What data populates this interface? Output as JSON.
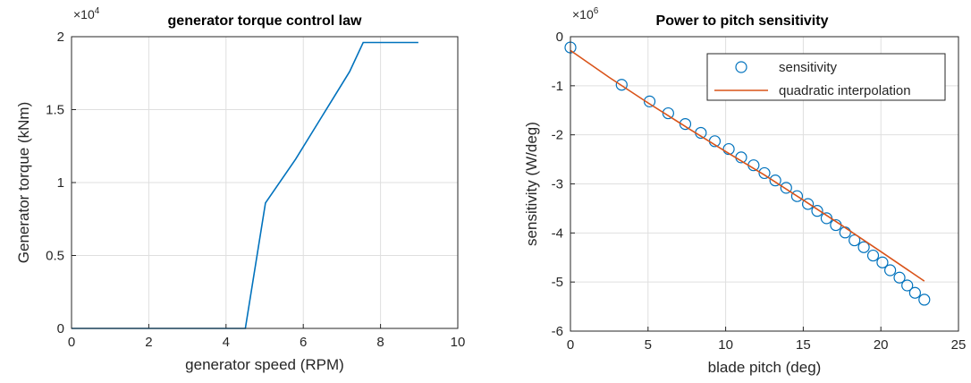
{
  "chart_data": [
    {
      "type": "line",
      "title": "generator torque control law",
      "xlabel": "generator speed (RPM)",
      "ylabel": "Generator torque (kNm)",
      "y_multiplier": "×10",
      "y_multiplier_exp": "4",
      "xlim": [
        0,
        10
      ],
      "ylim": [
        0,
        2
      ],
      "xticks": [
        "0",
        "2",
        "4",
        "6",
        "8",
        "10"
      ],
      "yticks": [
        "0",
        "0.5",
        "1",
        "1.5",
        "2"
      ],
      "grid": true,
      "series": [
        {
          "color": "#0072BD",
          "x": [
            0,
            4.5,
            5.02,
            5.8,
            6.5,
            7.2,
            7.55,
            7.6,
            8.98
          ],
          "y": [
            0,
            0,
            0.86,
            1.16,
            1.46,
            1.76,
            1.96,
            1.96,
            1.96
          ]
        }
      ]
    },
    {
      "type": "scatter",
      "title": "Power to pitch sensitivity",
      "xlabel": "blade pitch (deg)",
      "ylabel": "sensitivity (W/deg)",
      "y_multiplier": "×10",
      "y_multiplier_exp": "6",
      "xlim": [
        0,
        25
      ],
      "ylim": [
        -6,
        0
      ],
      "xticks": [
        "0",
        "5",
        "10",
        "15",
        "20",
        "25"
      ],
      "yticks": [
        "-6",
        "-5",
        "-4",
        "-3",
        "-2",
        "-1",
        "0"
      ],
      "grid": true,
      "legend_position": "top-right",
      "series": [
        {
          "name": "sensitivity",
          "marker": "circle",
          "color": "#0072BD",
          "x": [
            0,
            3.3,
            5.1,
            6.3,
            7.4,
            8.4,
            9.3,
            10.2,
            11.0,
            11.8,
            12.5,
            13.2,
            13.9,
            14.6,
            15.3,
            15.9,
            16.5,
            17.1,
            17.7,
            18.3,
            18.9,
            19.5,
            20.1,
            20.6,
            21.2,
            21.7,
            22.2,
            22.8
          ],
          "y": [
            -0.22,
            -0.98,
            -1.32,
            -1.56,
            -1.78,
            -1.96,
            -2.13,
            -2.29,
            -2.46,
            -2.62,
            -2.78,
            -2.93,
            -3.08,
            -3.25,
            -3.41,
            -3.55,
            -3.7,
            -3.84,
            -3.99,
            -4.15,
            -4.29,
            -4.46,
            -4.6,
            -4.76,
            -4.91,
            -5.07,
            -5.22,
            -5.36
          ]
        },
        {
          "name": "quadratic interpolation",
          "marker": "none",
          "color": "#D95319",
          "x": [
            0,
            2.5,
            5,
            7.5,
            10,
            12.5,
            15,
            17.5,
            20,
            22.8
          ],
          "y": [
            -0.28,
            -0.83,
            -1.35,
            -1.85,
            -2.34,
            -2.82,
            -3.33,
            -3.85,
            -4.38,
            -4.98
          ]
        }
      ]
    }
  ]
}
